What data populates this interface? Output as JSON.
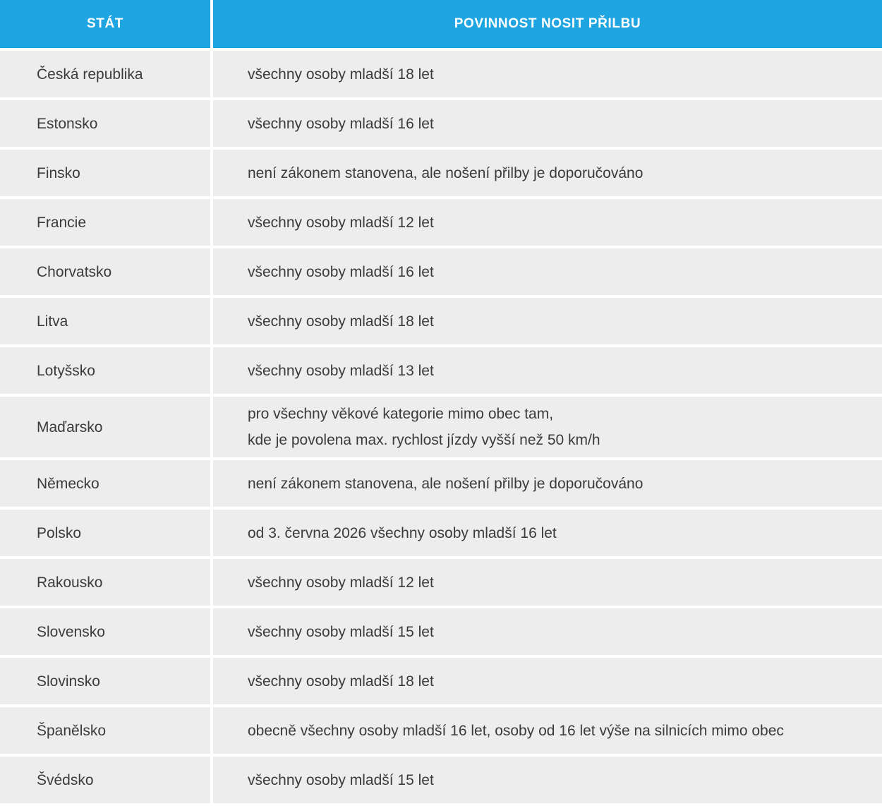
{
  "chart_data": {
    "type": "table",
    "columns": [
      "STÁT",
      "POVINNOST NOSIT PŘILBU"
    ],
    "rows": [
      {
        "country": "Česká republika",
        "rule": "všechny osoby mladší 18 let"
      },
      {
        "country": "Estonsko",
        "rule": "všechny osoby mladší 16 let"
      },
      {
        "country": "Finsko",
        "rule": "není zákonem stanovena, ale nošení přilby je doporučováno"
      },
      {
        "country": "Francie",
        "rule": "všechny osoby mladší 12 let"
      },
      {
        "country": "Chorvatsko",
        "rule": "všechny osoby mladší 16 let"
      },
      {
        "country": "Litva",
        "rule": "všechny osoby mladší 18 let"
      },
      {
        "country": "Lotyšsko",
        "rule": "všechny osoby mladší 13 let"
      },
      {
        "country": "Maďarsko",
        "rule": "pro všechny věkové kategorie mimo obec tam,\nkde je povolena max. rychlost jízdy vyšší než 50 km/h"
      },
      {
        "country": "Německo",
        "rule": "není zákonem stanovena, ale nošení přilby je doporučováno"
      },
      {
        "country": "Polsko",
        "rule": "od 3. června 2026 všechny osoby mladší 16 let"
      },
      {
        "country": "Rakousko",
        "rule": "všechny osoby mladší 12 let"
      },
      {
        "country": "Slovensko",
        "rule": "všechny osoby mladší 15 let"
      },
      {
        "country": "Slovinsko",
        "rule": "všechny osoby mladší 18 let"
      },
      {
        "country": "Španělsko",
        "rule": "obecně všechny osoby mladší 16 let, osoby od 16 let výše na silnicích mimo obec"
      },
      {
        "country": "Švédsko",
        "rule": "všechny osoby mladší 15 let"
      }
    ]
  },
  "colors": {
    "header_bg": "#1FA6E2",
    "header_text": "#FFFFFF",
    "row_bg": "#EDEDED",
    "body_text": "#3B3B3B",
    "gap": "#FFFFFF"
  }
}
